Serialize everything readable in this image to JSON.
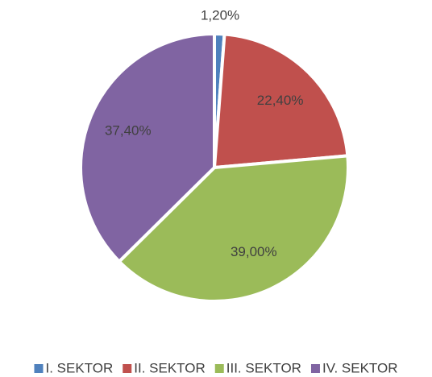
{
  "chart_data": {
    "type": "pie",
    "categories": [
      "I. SEKTOR",
      "II. SEKTOR",
      "III. SEKTOR",
      "IV. SEKTOR"
    ],
    "values": [
      1.2,
      22.4,
      39.0,
      37.4
    ],
    "value_labels": [
      "1,20%",
      "22,40%",
      "39,00%",
      "37,40%"
    ],
    "colors": [
      "#4f81bd",
      "#c0504d",
      "#9bbb59",
      "#8064a2"
    ],
    "legend": "bottom"
  }
}
